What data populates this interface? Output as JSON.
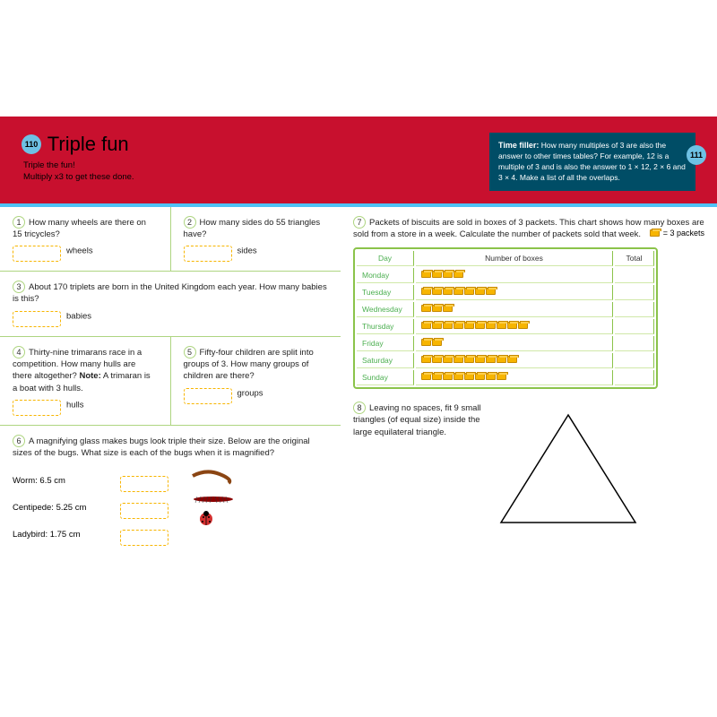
{
  "header": {
    "pageLeft": "110",
    "pageRight": "111",
    "title": "Triple fun",
    "subtitle1": "Triple the fun!",
    "subtitle2": "Multiply x3 to get these done.",
    "timeFillerTitle": "Time filler:",
    "timeFillerText": "How many multiples of 3 are also the answer to other times tables? For example, 12 is a multiple of 3 and is also the answer to 1 × 12, 2 × 6 and 3 × 4. Make a list of all the overlaps."
  },
  "q1": {
    "num": "1",
    "text": "How many wheels are there on 15 tricycles?",
    "label": "wheels"
  },
  "q2": {
    "num": "2",
    "text": "How many sides do 55 triangles have?",
    "label": "sides"
  },
  "q3": {
    "num": "3",
    "text": "About 170 triplets are born in the United Kingdom each year. How many babies is this?",
    "label": "babies"
  },
  "q4": {
    "num": "4",
    "text": "Thirty-nine trimarans race in a competition. How many hulls are there altogether? ",
    "note": "Note:",
    "text2": " A trimaran is a boat with 3 hulls.",
    "label": "hulls"
  },
  "q5": {
    "num": "5",
    "text": "Fifty-four children are split into groups of 3. How many groups of children are there?",
    "label": "groups"
  },
  "q6": {
    "num": "6",
    "text": "A magnifying glass makes bugs look triple their size. Below are the original sizes of the bugs. What size is each of the bugs when it is magnified?",
    "bugs": [
      {
        "name": "Worm: 6.5 cm"
      },
      {
        "name": "Centipede: 5.25 cm"
      },
      {
        "name": "Ladybird: 1.75 cm"
      }
    ]
  },
  "q7": {
    "num": "7",
    "text": "Packets of biscuits are sold in boxes of 3 packets. This chart shows how many boxes are sold from a store in a week. Calculate the number of packets sold that week.",
    "legend": "= 3 packets",
    "headers": {
      "day": "Day",
      "boxes": "Number of boxes",
      "total": "Total"
    },
    "rows": [
      {
        "day": "Monday",
        "count": 4
      },
      {
        "day": "Tuesday",
        "count": 7
      },
      {
        "day": "Wednesday",
        "count": 3
      },
      {
        "day": "Thursday",
        "count": 10
      },
      {
        "day": "Friday",
        "count": 2
      },
      {
        "day": "Saturday",
        "count": 9
      },
      {
        "day": "Sunday",
        "count": 8
      }
    ]
  },
  "q8": {
    "num": "8",
    "text": "Leaving no spaces, fit 9 small triangles (of equal size) inside the large equilateral triangle."
  },
  "colors": {
    "headerBg": "#c8102e",
    "circleBg": "#6ec1e4",
    "tableBorder": "#8bc34a",
    "boxFill": "#f7b500"
  }
}
